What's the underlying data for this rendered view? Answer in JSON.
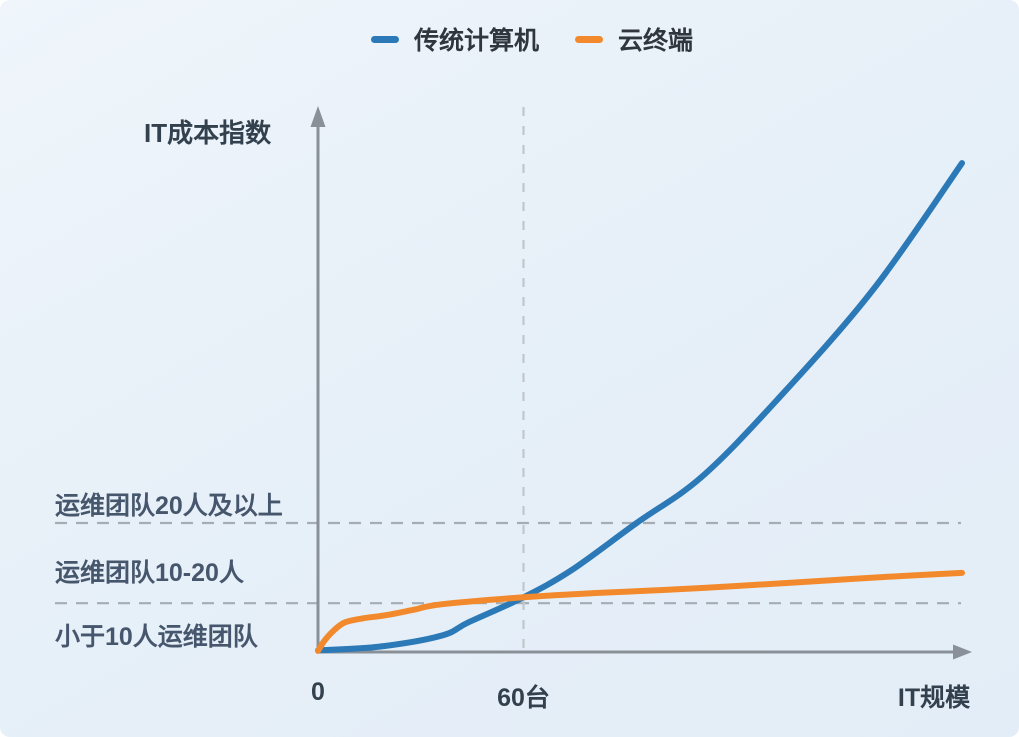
{
  "colors": {
    "background": "#e8f1f9",
    "axis": "#8a9097",
    "dash_horizontal": "#a6acb3",
    "dash_vertical": "#c0c6cd",
    "zone_label_text": "#46566c",
    "axis_label_text": "#33414f",
    "legend_text": "#30363d"
  },
  "chart_data": {
    "type": "line",
    "title": "",
    "ylabel": "IT成本指数",
    "xlabel": "IT规模",
    "x_unit": "台",
    "x_range": [
      0,
      188
    ],
    "y_range": [
      0,
      100
    ],
    "grid": false,
    "legend_position": "top-center",
    "reference_x": 60,
    "x_ticks": [
      {
        "label": "0",
        "x": 0
      },
      {
        "label": "60台",
        "x": 60
      }
    ],
    "separator_lines_y": [
      23.8,
      9.0
    ],
    "zones": [
      {
        "label": "运维团队20人及以上"
      },
      {
        "label": "运维团队10-20人"
      },
      {
        "label": "小于10人运维团队"
      }
    ],
    "series": [
      {
        "name": "传统计算机",
        "color": "#2b79b7",
        "points": [
          [
            0,
            0.3
          ],
          [
            18,
            1.0
          ],
          [
            36,
            3.0
          ],
          [
            44,
            5.5
          ],
          [
            60,
            10.1
          ],
          [
            74,
            15.1
          ],
          [
            93,
            23.8
          ],
          [
            112,
            32.3
          ],
          [
            134,
            46.5
          ],
          [
            162,
            66.8
          ],
          [
            188,
            90.2
          ]
        ]
      },
      {
        "name": "云终端",
        "color": "#f28a2d",
        "points": [
          [
            0,
            0.2
          ],
          [
            2,
            2.2
          ],
          [
            5,
            4.2
          ],
          [
            8,
            5.5
          ],
          [
            13,
            6.2
          ],
          [
            20,
            6.8
          ],
          [
            28,
            7.8
          ],
          [
            36,
            8.8
          ],
          [
            60,
            10.1
          ],
          [
            82,
            10.9
          ],
          [
            112,
            11.8
          ],
          [
            141,
            12.9
          ],
          [
            164,
            13.8
          ],
          [
            188,
            14.6
          ]
        ]
      }
    ]
  }
}
